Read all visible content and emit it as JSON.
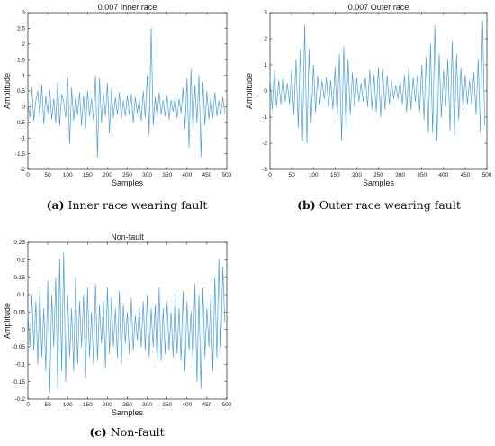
{
  "chart_data": [
    {
      "type": "line",
      "title": "0.007 Inner race",
      "xlabel": "Samples",
      "ylabel": "Amplitude",
      "xlim": [
        0,
        500
      ],
      "ylim": [
        -2,
        3
      ],
      "xticks": [
        0,
        50,
        100,
        150,
        200,
        250,
        300,
        350,
        400,
        450,
        500
      ],
      "yticks": [
        -2,
        -1.5,
        -1,
        -0.5,
        0,
        0.5,
        1,
        1.5,
        2,
        2.5,
        3
      ],
      "ytick_labels": [
        "-2",
        "-1.5",
        "-1",
        "-0.5",
        "0",
        "0.5",
        "1",
        "1.5",
        "2",
        "2.5",
        "3"
      ],
      "line_color": "#4a9fd8",
      "caption": {
        "letter": "(a)",
        "text": "Inner race wearing fault"
      },
      "series": [
        {
          "x_step": 5,
          "y": [
            0.1,
            -0.35,
            0.6,
            -0.45,
            0.2,
            0.5,
            -0.3,
            0.7,
            -0.55,
            0.35,
            -0.2,
            0.55,
            -0.4,
            0.25,
            -0.5,
            0.8,
            -0.6,
            0.4,
            0.15,
            -0.35,
            0.95,
            -1.2,
            0.6,
            -0.45,
            0.3,
            -0.25,
            0.45,
            -0.6,
            0.35,
            -0.7,
            0.5,
            -0.3,
            0.25,
            -0.45,
            1.0,
            -1.6,
            0.9,
            -0.5,
            0.4,
            -0.3,
            0.75,
            -0.85,
            0.55,
            -0.35,
            0.3,
            -0.25,
            0.45,
            -0.4,
            0.2,
            -0.3,
            0.35,
            -0.25,
            0.4,
            -0.5,
            0.3,
            -0.2,
            0.25,
            -0.45,
            0.5,
            -0.35,
            1.0,
            -0.9,
            2.5,
            -0.6,
            0.3,
            -0.35,
            0.45,
            -0.25,
            0.2,
            -0.3,
            0.35,
            -0.4,
            0.2,
            -0.15,
            0.3,
            -0.35,
            0.25,
            -0.2,
            0.6,
            -0.7,
            0.9,
            -1.3,
            1.2,
            -0.8,
            0.7,
            -0.5,
            1.0,
            -1.6,
            0.8,
            -0.6,
            0.5,
            -0.4,
            0.3,
            -0.35,
            0.45,
            -0.3,
            0.2,
            -0.25,
            0.3,
            -0.2
          ]
        }
      ]
    },
    {
      "type": "line",
      "title": "0.007 Outer race",
      "xlabel": "Samples",
      "ylabel": "Amplitude",
      "xlim": [
        0,
        500
      ],
      "ylim": [
        -3,
        3
      ],
      "xticks": [
        0,
        50,
        100,
        150,
        200,
        250,
        300,
        350,
        400,
        450,
        500
      ],
      "yticks": [
        -3,
        -2,
        -1,
        0,
        1,
        2,
        3
      ],
      "ytick_labels": [
        "-3",
        "-2",
        "-1",
        "0",
        "1",
        "2",
        "3"
      ],
      "line_color": "#4a9fd8",
      "caption": {
        "letter": "(b)",
        "text": "Outer race wearing fault"
      },
      "series": [
        {
          "x_step": 5,
          "y": [
            0.5,
            -0.7,
            0.8,
            -0.6,
            0.4,
            -0.5,
            0.6,
            -0.4,
            0.3,
            -0.5,
            0.8,
            -0.9,
            1.2,
            -1.4,
            1.6,
            -1.9,
            2.5,
            -2.0,
            1.6,
            -1.2,
            1.0,
            -0.8,
            0.6,
            -0.5,
            0.4,
            -0.3,
            0.5,
            -0.6,
            0.4,
            -0.7,
            0.9,
            -1.1,
            1.4,
            -1.9,
            1.7,
            -1.4,
            1.2,
            -0.9,
            0.7,
            -0.6,
            0.5,
            -0.4,
            0.3,
            -0.4,
            0.5,
            -0.6,
            0.8,
            -0.7,
            0.6,
            -0.8,
            0.9,
            -1.0,
            0.8,
            -0.7,
            0.6,
            -0.5,
            0.4,
            -0.3,
            0.2,
            -0.3,
            0.4,
            -0.5,
            0.6,
            -0.8,
            0.9,
            -0.7,
            0.5,
            -0.4,
            0.6,
            -0.8,
            1.0,
            -1.1,
            1.3,
            -1.6,
            1.8,
            -1.6,
            2.5,
            -1.9,
            1.4,
            -1.0,
            0.8,
            -0.6,
            1.2,
            -1.5,
            1.9,
            -1.7,
            1.4,
            -1.1,
            0.9,
            -0.7,
            0.6,
            -0.5,
            0.4,
            -0.5,
            0.7,
            -0.9,
            1.2,
            -1.6,
            2.7,
            -1.3
          ]
        }
      ]
    },
    {
      "type": "line",
      "title": "Non-fault",
      "xlabel": "Samples",
      "ylabel": "Amplitude",
      "xlim": [
        0,
        500
      ],
      "ylim": [
        -0.2,
        0.25
      ],
      "xticks": [
        0,
        50,
        100,
        150,
        200,
        250,
        300,
        350,
        400,
        450,
        500
      ],
      "yticks": [
        -0.2,
        -0.15,
        -0.1,
        -0.05,
        0,
        0.05,
        0.1,
        0.15,
        0.2,
        0.25
      ],
      "ytick_labels": [
        "-0.2",
        "-0.15",
        "-0.1",
        "-0.05",
        "0",
        "0.05",
        "0.1",
        "0.15",
        "0.2",
        "0.25"
      ],
      "line_color": "#4a9fd8",
      "caption": {
        "letter": "(c)",
        "text": "Non-fault"
      },
      "series": [
        {
          "x_step": 5,
          "y": [
            0.05,
            -0.05,
            0.1,
            -0.06,
            0.08,
            -0.1,
            0.12,
            -0.08,
            0.06,
            -0.12,
            0.14,
            -0.18,
            0.1,
            -0.05,
            0.15,
            -0.17,
            0.2,
            -0.12,
            0.22,
            -0.15,
            0.1,
            -0.08,
            0.06,
            -0.12,
            0.15,
            -0.1,
            0.08,
            -0.05,
            0.1,
            -0.14,
            0.12,
            -0.08,
            0.05,
            -0.1,
            0.13,
            -0.09,
            0.07,
            -0.04,
            0.08,
            -0.11,
            0.12,
            -0.07,
            0.09,
            -0.05,
            0.06,
            -0.08,
            0.11,
            -0.1,
            0.07,
            -0.04,
            0.05,
            -0.07,
            0.09,
            -0.06,
            0.04,
            -0.03,
            0.06,
            -0.05,
            0.08,
            -0.06,
            0.1,
            -0.08,
            0.06,
            -0.05,
            0.07,
            -0.1,
            0.12,
            -0.09,
            0.06,
            -0.07,
            0.08,
            -0.06,
            0.05,
            -0.08,
            0.1,
            -0.07,
            0.06,
            -0.09,
            0.11,
            -0.12,
            0.08,
            -0.06,
            0.05,
            -0.1,
            0.13,
            -0.15,
            0.1,
            -0.17,
            0.12,
            -0.08,
            0.06,
            -0.05,
            0.1,
            -0.12,
            0.15,
            -0.08,
            0.2,
            -0.05,
            0.18,
            0.02
          ]
        }
      ]
    }
  ]
}
